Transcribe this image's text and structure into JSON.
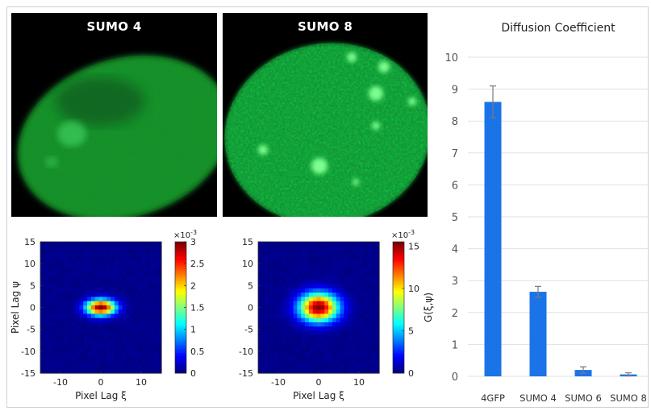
{
  "cells": [
    {
      "title": "SUMO 4",
      "color": "#1f9e3a"
    },
    {
      "title": "SUMO 8",
      "color": "#2aa046"
    }
  ],
  "heatmaps": [
    {
      "type": "heatmap",
      "xlabel": "Pixel Lag ξ",
      "ylabel": "Pixel Lag ψ",
      "colorbar_label": "",
      "colorbar_exponent": "×10",
      "colorbar_exponent_power": "-3",
      "xticks": [
        "-10",
        "0",
        "10"
      ],
      "yticks": [
        "15",
        "10",
        "5",
        "0",
        "-5",
        "-10",
        "-15"
      ],
      "xlim": [
        -15,
        15
      ],
      "ylim": [
        -15,
        15
      ],
      "colorbar_ticks": [
        "3",
        "2.5",
        "2",
        "1.5",
        "1",
        "0.5",
        "0"
      ],
      "colorbar_range": [
        0,
        3
      ],
      "peak": 3,
      "sigma_x": 2.6,
      "sigma_y": 1.3
    },
    {
      "type": "heatmap",
      "xlabel": "Pixel Lag ξ",
      "ylabel": "",
      "colorbar_label": "G(ξ,ψ)",
      "colorbar_exponent": "×10",
      "colorbar_exponent_power": "-3",
      "xticks": [
        "-10",
        "0",
        "10"
      ],
      "yticks": [
        "15",
        "10",
        "5",
        "0",
        "-5",
        "-10",
        "-15"
      ],
      "xlim": [
        -15,
        15
      ],
      "ylim": [
        -15,
        15
      ],
      "colorbar_ticks": [
        "15",
        "10",
        "5",
        "0"
      ],
      "colorbar_range": [
        0,
        15.5
      ],
      "peak": 15.5,
      "sigma_x": 3.4,
      "sigma_y": 2.3
    }
  ],
  "chart_data": {
    "type": "bar",
    "title": "Diffusion Coefficient",
    "categories": [
      "4GFP",
      "SUMO 4",
      "SUMO 6",
      "SUMO 8"
    ],
    "values": [
      8.6,
      2.65,
      0.2,
      0.06
    ],
    "errors": [
      0.5,
      0.17,
      0.1,
      0.05
    ],
    "ylim": [
      0,
      10
    ],
    "yticks": [
      "10",
      "9",
      "8",
      "7",
      "6",
      "5",
      "4",
      "3",
      "2",
      "1",
      "0"
    ],
    "bar_color": "#1b73e8",
    "error_color": "#7a7a7a",
    "grid": true
  }
}
